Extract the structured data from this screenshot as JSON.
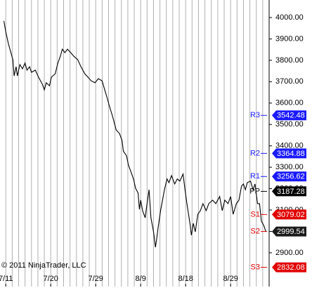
{
  "chart_data": {
    "type": "line",
    "copyright": "© 2011 NinjaTrader, LLC",
    "xlim": [
      -0.9,
      41
    ],
    "ylim": [
      2742,
      4082
    ],
    "xticks": [
      {
        "value": 0,
        "label": "7/11"
      },
      {
        "value": 7,
        "label": "7/20"
      },
      {
        "value": 14,
        "label": "7/29"
      },
      {
        "value": 21,
        "label": "8/9"
      },
      {
        "value": 28,
        "label": "8/18"
      },
      {
        "value": 35,
        "label": "8/29"
      }
    ],
    "yticks": [
      {
        "value": 2900,
        "label": "2900.00"
      },
      {
        "value": 3000,
        "label": "3000.00"
      },
      {
        "value": 3100,
        "label": "3100.00"
      },
      {
        "value": 3200,
        "label": "3200.00"
      },
      {
        "value": 3300,
        "label": "3300.00"
      },
      {
        "value": 3400,
        "label": "3400.00"
      },
      {
        "value": 3500,
        "label": "3500.00"
      },
      {
        "value": 3600,
        "label": "3600.00"
      },
      {
        "value": 3700,
        "label": "3700.00"
      },
      {
        "value": 3800,
        "label": "3800.00"
      },
      {
        "value": 3900,
        "label": "3900.00"
      },
      {
        "value": 4000,
        "label": "4000.00"
      }
    ],
    "daily_grid": true,
    "series": [
      {
        "color": "#000000",
        "x": [
          -0.3,
          0,
          0.4,
          0.8,
          1.1,
          1.3,
          1.6,
          1.8,
          2.2,
          2.6,
          3.0,
          3.3,
          3.7,
          4.0,
          4.6,
          5.1,
          5.7,
          6.0,
          6.3,
          6.8,
          7.1,
          7.7,
          8.1,
          8.5,
          8.8,
          9.2,
          9.6,
          10.1,
          10.6,
          11.2,
          11.7,
          12.3,
          12.8,
          13.3,
          13.9,
          14.4,
          15.0,
          15.3,
          15.8,
          16.1,
          16.6,
          17.2,
          17.7,
          18.1,
          18.3,
          18.8,
          19.1,
          19.5,
          19.9,
          20.2,
          20.6,
          20.8,
          21.0,
          21.3,
          21.7,
          22.0,
          22.3,
          22.6,
          23.0,
          23.3,
          23.5,
          23.7,
          24.1,
          24.4,
          24.7,
          25.1,
          25.4,
          25.8,
          26.3,
          26.7,
          27.1,
          27.6,
          27.9,
          28.2,
          28.7,
          28.9,
          29.2,
          29.5,
          29.9,
          30.3,
          30.7,
          31.2,
          31.6,
          32.2,
          32.7,
          33.3,
          33.7,
          34.1,
          34.6,
          35.0,
          35.4,
          35.9,
          36.3,
          36.7,
          37.0,
          37.3,
          37.6,
          38.1,
          38.5,
          38.8,
          39.2,
          39.5,
          39.8,
          40.2,
          40.5
        ],
        "values": [
          3984,
          3934,
          3878,
          3836,
          3803,
          3727,
          3770,
          3727,
          3780,
          3760,
          3787,
          3754,
          3770,
          3744,
          3754,
          3721,
          3688,
          3662,
          3695,
          3681,
          3721,
          3737,
          3787,
          3819,
          3852,
          3836,
          3852,
          3836,
          3819,
          3803,
          3770,
          3737,
          3721,
          3704,
          3695,
          3714,
          3704,
          3672,
          3622,
          3589,
          3540,
          3474,
          3458,
          3425,
          3376,
          3353,
          3310,
          3277,
          3244,
          3202,
          3179,
          3103,
          3146,
          3097,
          3064,
          3130,
          3195,
          3064,
          2998,
          2926,
          2966,
          3015,
          3097,
          3146,
          3195,
          3245,
          3228,
          3261,
          3222,
          3245,
          3235,
          3268,
          3195,
          3130,
          3031,
          2982,
          3038,
          2998,
          3080,
          3097,
          3130,
          3097,
          3130,
          3146,
          3130,
          3163,
          3097,
          3146,
          3130,
          3163,
          3080,
          3130,
          3146,
          3212,
          3222,
          3195,
          3228,
          3235,
          3195,
          3222,
          3130,
          3130,
          3048,
          3025,
          2998
        ]
      }
    ],
    "levels": [
      {
        "name": "R3",
        "value": 3542.48,
        "value_label": "3542.48",
        "color": "#1a1aff",
        "box_color": "#1a1aff"
      },
      {
        "name": "R2",
        "value": 3364.88,
        "value_label": "3364.88",
        "color": "#1a1aff",
        "box_color": "#1a1aff"
      },
      {
        "name": "R1",
        "value": 3256.62,
        "value_label": "3256.62",
        "color": "#1a1aff",
        "box_color": "#1a1aff"
      },
      {
        "name": "PP",
        "value": 3187.28,
        "value_label": "3187.28",
        "color": "#000000",
        "box_color": "#000000"
      },
      {
        "name": "S1",
        "value": 3079.02,
        "value_label": "3079.02",
        "color": "#e00000",
        "box_color": "#e00000"
      },
      {
        "name": "S2",
        "value": 2999.54,
        "value_label": "2999.54",
        "color": "#e00000",
        "box_color": "#1a1a1a"
      },
      {
        "name": "S3",
        "value": 2832.08,
        "value_label": "2832.08",
        "color": "#e00000",
        "box_color": "#e00000"
      }
    ]
  }
}
